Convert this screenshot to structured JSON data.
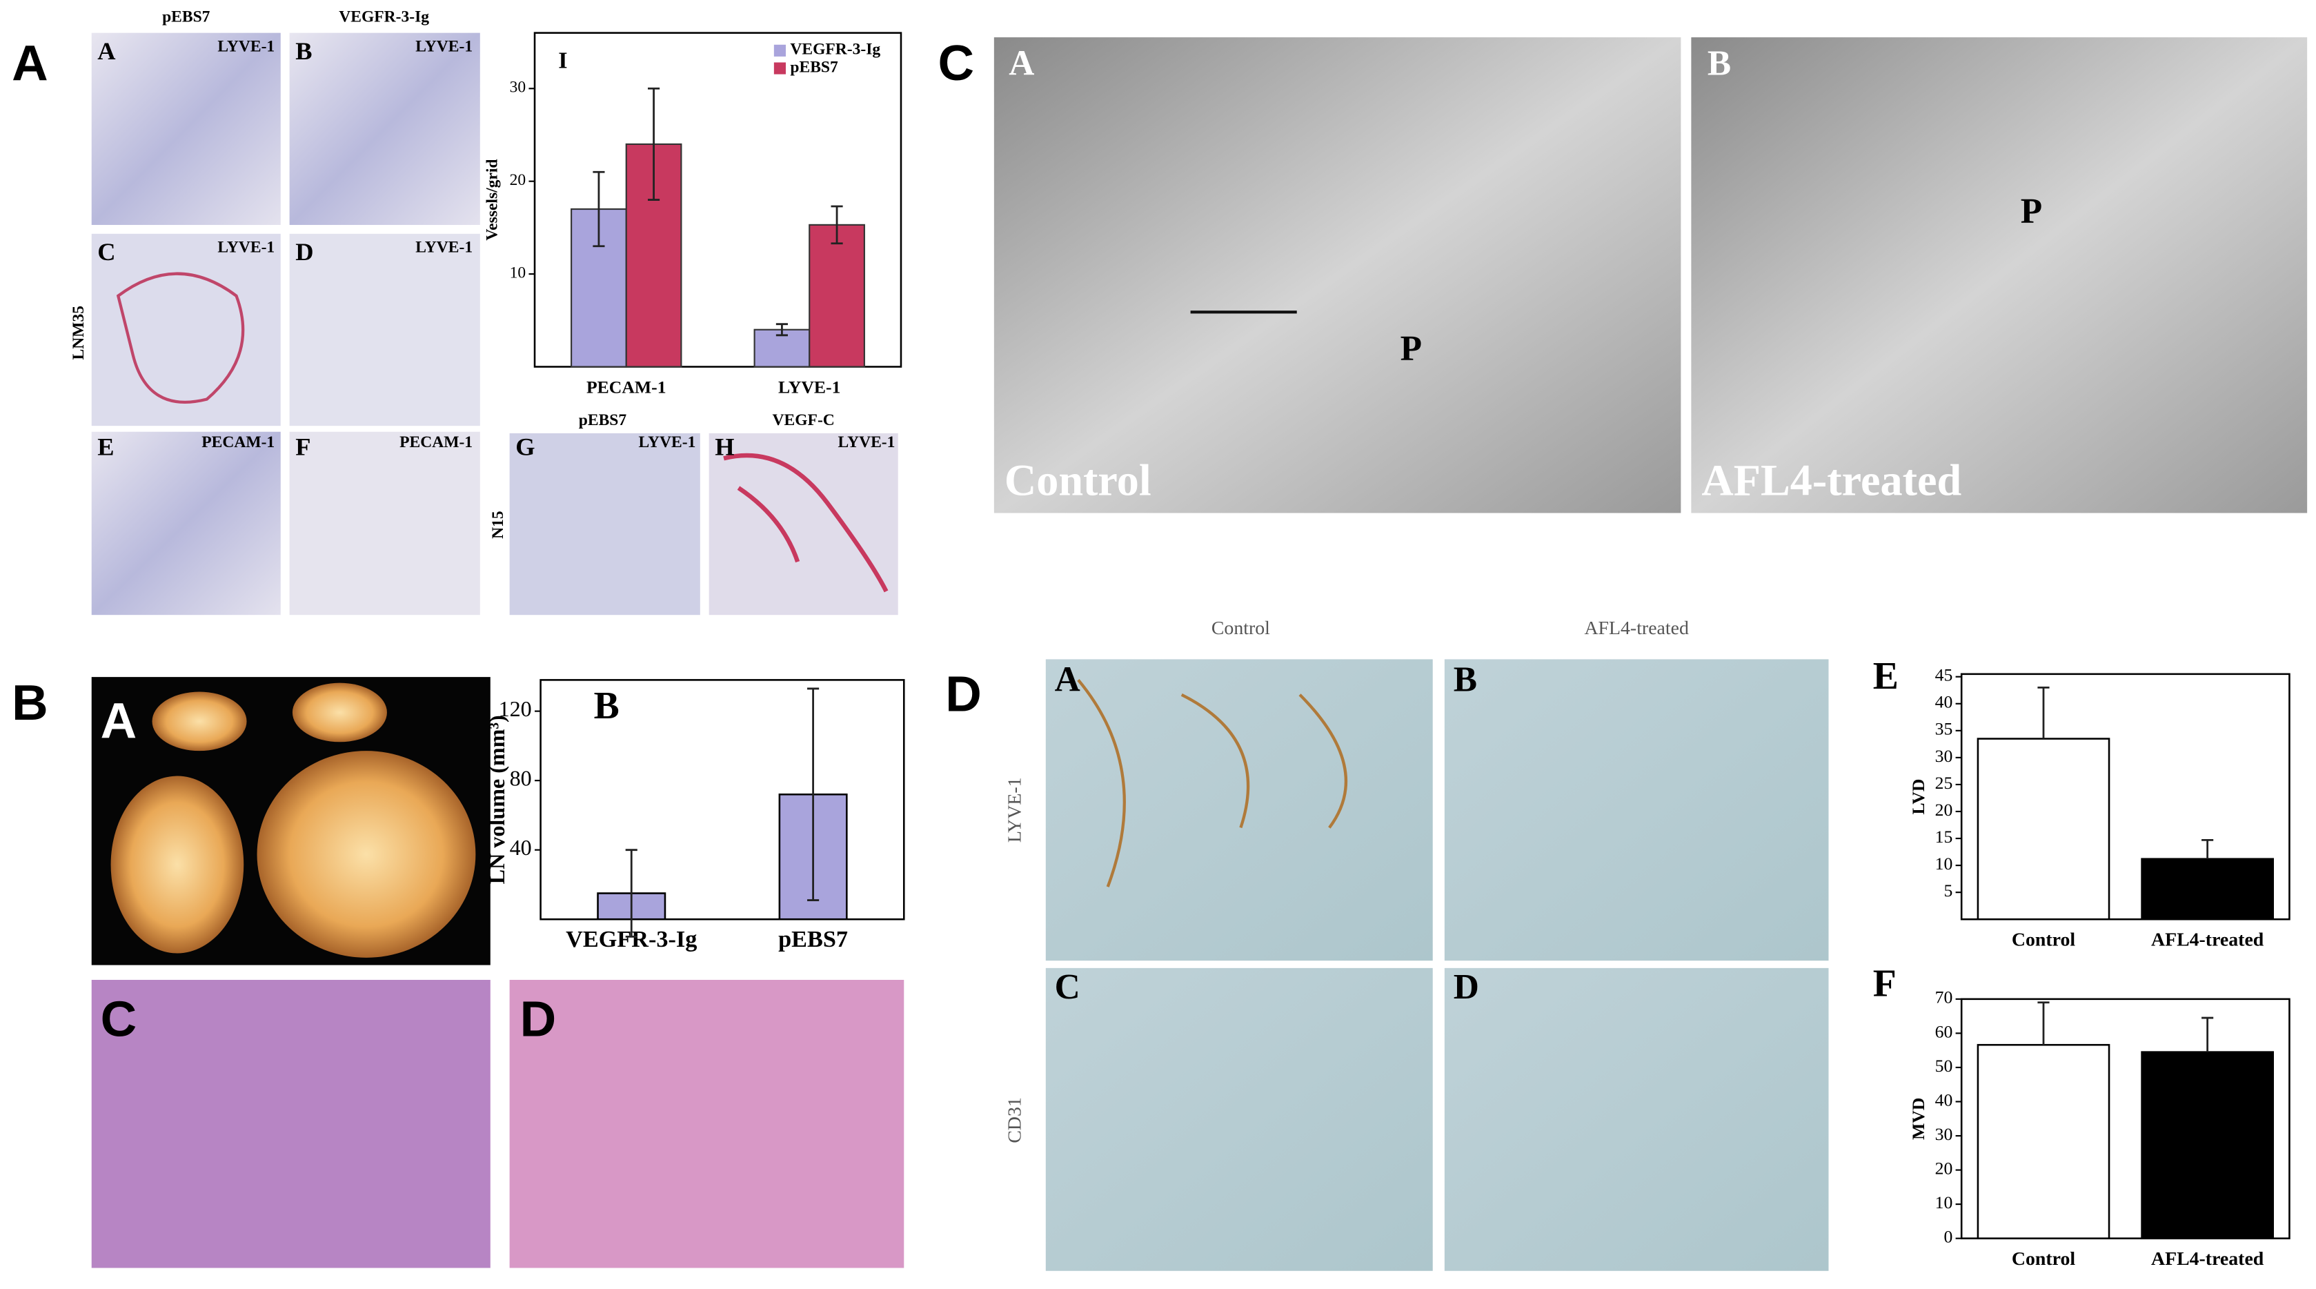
{
  "figure": {
    "panel_letters": [
      "A",
      "B",
      "C",
      "D"
    ],
    "panel_A": {
      "headers": [
        "pEBS7",
        "VEGFR-3-Ig"
      ],
      "row_label": "LNM35",
      "images": [
        {
          "letter": "A",
          "stain": "LYVE-1"
        },
        {
          "letter": "B",
          "stain": "LYVE-1"
        },
        {
          "letter": "C",
          "stain": "LYVE-1"
        },
        {
          "letter": "D",
          "stain": "LYVE-1"
        },
        {
          "letter": "E",
          "stain": "PECAM-1"
        },
        {
          "letter": "F",
          "stain": "PECAM-1"
        }
      ],
      "lower_headers": [
        "pEBS7",
        "VEGF-C"
      ],
      "lower_row_label": "N15",
      "lower_images": [
        {
          "letter": "G",
          "stain": "LYVE-1"
        },
        {
          "letter": "H",
          "stain": "LYVE-1"
        }
      ]
    },
    "panel_B": {
      "image_letters": [
        "A",
        "C",
        "D"
      ]
    },
    "panel_C": {
      "images": [
        {
          "letter": "A",
          "caption": "Control",
          "mark": "P"
        },
        {
          "letter": "B",
          "caption": "AFL4-treated",
          "mark": "P"
        }
      ]
    },
    "panel_D": {
      "headers": [
        "Control",
        "AFL4-treated"
      ],
      "row_labels": [
        "LYVE-1",
        "CD31"
      ],
      "image_letters": [
        "A",
        "B",
        "C",
        "D"
      ]
    }
  },
  "chart_data": [
    {
      "type": "bar",
      "panel_label": "I",
      "y_label": "Vessels/grid",
      "categories": [
        "PECAM-1",
        "LYVE-1"
      ],
      "series": [
        {
          "name": "VEGFR-3-Ig",
          "color": "#a9a4dc",
          "values": [
            17,
            4
          ],
          "errors": [
            4,
            0.6
          ]
        },
        {
          "name": "pEBS7",
          "color": "#c8395f",
          "values": [
            24,
            15.3
          ],
          "errors": [
            6,
            2
          ]
        }
      ],
      "ylim": [
        0,
        36
      ],
      "yticks": [
        10,
        20,
        30
      ],
      "legend": "top-right"
    },
    {
      "type": "bar",
      "panel_label": "B",
      "y_label": "LN volume (mm³)",
      "categories": [
        "VEGFR-3-Ig",
        "pEBS7"
      ],
      "values": [
        15,
        72
      ],
      "errors": [
        25,
        61
      ],
      "colors": [
        "#a9a4dc",
        "#a9a4dc"
      ],
      "ylim": [
        0,
        138
      ],
      "yticks": [
        40,
        80,
        120
      ]
    },
    {
      "type": "bar",
      "panel_label": "E",
      "y_label": "LVD",
      "categories": [
        "Control",
        "AFL4-treated"
      ],
      "values": [
        33.5,
        11.2
      ],
      "errors": [
        9.5,
        3.5
      ],
      "colors": [
        "#ffffff",
        "#000000"
      ],
      "ylim": [
        0,
        45.5
      ],
      "yticks": [
        5,
        10,
        15,
        20,
        25,
        30,
        35,
        40,
        45
      ]
    },
    {
      "type": "bar",
      "panel_label": "F",
      "y_label": "MVD",
      "categories": [
        "Control",
        "AFL4-treated"
      ],
      "values": [
        56.6,
        54.5
      ],
      "errors": [
        12.4,
        10
      ],
      "colors": [
        "#ffffff",
        "#000000"
      ],
      "ylim": [
        0,
        70
      ],
      "yticks": [
        0,
        10,
        20,
        30,
        40,
        50,
        60,
        70
      ]
    }
  ]
}
